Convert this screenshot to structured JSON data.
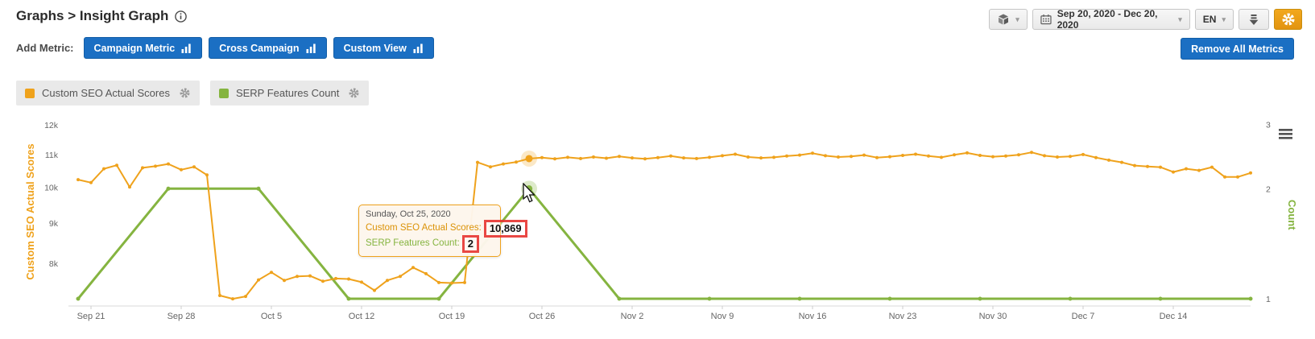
{
  "header": {
    "title": "Graphs > Insight Graph",
    "date_range": "Sep 20, 2020 - Dec 20, 2020",
    "language": "EN"
  },
  "add_metric": {
    "label": "Add Metric:",
    "buttons": [
      {
        "label": "Campaign Metric"
      },
      {
        "label": "Cross Campaign"
      },
      {
        "label": "Custom View"
      }
    ],
    "remove_label": "Remove All Metrics"
  },
  "metric_chips": [
    {
      "label": "Custom SEO Actual Scores",
      "color": "#EFA21C"
    },
    {
      "label": "SERP Features Count",
      "color": "#85B440"
    }
  ],
  "tooltip": {
    "date": "Sunday, Oct 25, 2020",
    "rows": [
      {
        "label": "Custom SEO Actual Scores:",
        "value": "10,869",
        "color": "#DB9206"
      },
      {
        "label": "SERP Features Count:",
        "value": "2",
        "color": "#85B440"
      }
    ]
  },
  "chart_data": {
    "type": "line",
    "title": "Insight Graph",
    "grid": false,
    "legend_position": "chips above chart",
    "x_axis": {
      "start_date": "2020-09-20",
      "end_date": "2020-12-20",
      "tick_labels": [
        "Sep 21",
        "Sep 28",
        "Oct 5",
        "Oct 12",
        "Oct 19",
        "Oct 26",
        "Nov 2",
        "Nov 9",
        "Nov 16",
        "Nov 23",
        "Nov 30",
        "Dec 7",
        "Dec 14"
      ]
    },
    "y_left": {
      "title": "Custom SEO Actual Scores",
      "color": "#EFA21C",
      "scale": "log",
      "tick_labels": [
        "12k",
        "11k",
        "10k",
        "9k",
        "8k"
      ],
      "tick_values": [
        12000,
        11000,
        10000,
        9000,
        8000
      ]
    },
    "y_right": {
      "title": "Count",
      "color": "#85B440",
      "scale": "log",
      "tick_labels": [
        "3",
        "2",
        "1"
      ],
      "tick_values": [
        3,
        2,
        1
      ]
    },
    "series": [
      {
        "name": "Custom SEO Actual Scores",
        "color": "#EFA21C",
        "axis": "left",
        "interval_days": 1,
        "values": [
          10220,
          10130,
          10550,
          10660,
          10000,
          10580,
          10630,
          10700,
          10520,
          10610,
          10360,
          7280,
          7210,
          7260,
          7620,
          7790,
          7610,
          7700,
          7710,
          7590,
          7650,
          7640,
          7570,
          7390,
          7610,
          7700,
          7900,
          7760,
          7560,
          7550,
          7560,
          10750,
          10610,
          10700,
          10760,
          10869,
          10900,
          10860,
          10910,
          10870,
          10920,
          10880,
          10940,
          10890,
          10860,
          10900,
          10950,
          10890,
          10870,
          10910,
          10960,
          11010,
          10920,
          10890,
          10910,
          10950,
          10980,
          11040,
          10960,
          10920,
          10940,
          10980,
          10900,
          10930,
          10970,
          11010,
          10950,
          10910,
          10990,
          11050,
          10970,
          10930,
          10950,
          10990,
          11070,
          10960,
          10920,
          10940,
          11000,
          10900,
          10820,
          10750,
          10650,
          10620,
          10600,
          10450,
          10550,
          10500,
          10600,
          10300,
          10300,
          10420
        ]
      },
      {
        "name": "SERP Features Count",
        "color": "#85B440",
        "axis": "right",
        "interval_days": 7,
        "values": [
          1,
          2,
          2,
          1,
          1,
          2,
          1,
          1,
          1,
          1,
          1,
          1,
          1,
          1
        ]
      }
    ],
    "highlighted_point": {
      "date": "Sunday, Oct 25, 2020",
      "day_index": 35,
      "custom_seo_actual_scores": 10869,
      "serp_features_count": 2
    }
  }
}
